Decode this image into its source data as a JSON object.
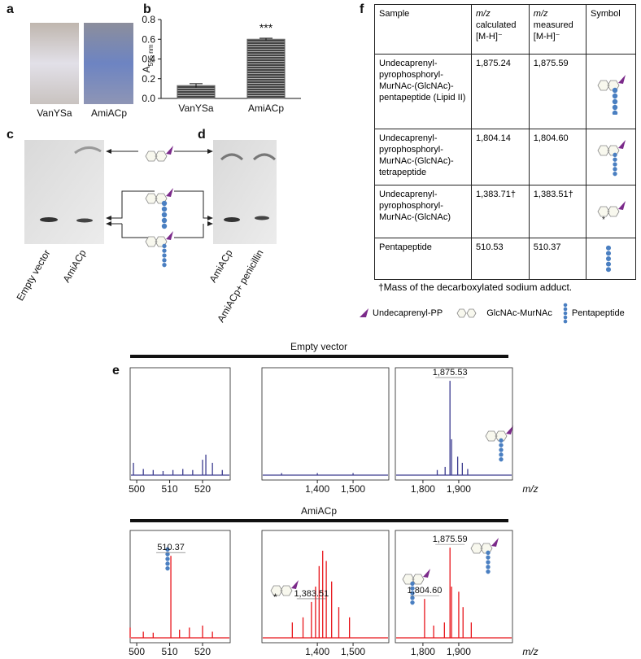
{
  "panel_labels": [
    "a",
    "b",
    "c",
    "d",
    "f",
    "e"
  ],
  "photo_labels": [
    "VanYSa",
    "AmiACp"
  ],
  "gels": {
    "c": {
      "lanes": [
        "Empty vector",
        "AmiACp"
      ]
    },
    "d": {
      "lanes": [
        "AmiACp",
        "AmiACp+ penicillin"
      ]
    }
  },
  "table": {
    "mz_label": "m/z",
    "columns": [
      "Sample",
      "calculated [M-H]⁻",
      "measured [M-H]⁻",
      "Symbol"
    ],
    "rows": [
      [
        "Undecaprenyl-pyrophosphoryl-MurNAc-(GlcNAc)-pentapeptide (Lipid II)",
        "1,875.24",
        "1,875.59"
      ],
      [
        "Undecaprenyl-pyrophosphoryl-MurNAc-(GlcNAc)-tetrapeptide",
        "1,804.14",
        "1,804.60"
      ],
      [
        "Undecaprenyl-pyrophosphoryl-MurNAc-(GlcNAc)",
        "1,383.71†",
        "1,383.51†"
      ],
      [
        "Pentapeptide",
        "510.53",
        "510.37"
      ]
    ],
    "footnote": "†Mass of the decarboxylated sodium adduct."
  },
  "legend": [
    "Undecaprenyl-PP",
    "GlcNAc-MurNAc",
    "Pentapeptide"
  ],
  "spectra_titles": [
    "Empty vector",
    "AmiACp"
  ],
  "chart_data": [
    {
      "type": "bar",
      "categories": [
        "VanYSa",
        "AmiACp"
      ],
      "values": [
        0.13,
        0.6
      ],
      "errors": [
        0.02,
        0.01
      ],
      "color": "#5a5a5a",
      "ylim": [
        0,
        0.8
      ],
      "yticks": [
        {
          "value": 0,
          "label": "0.0"
        },
        {
          "value": 0.2,
          "label": "0.2"
        },
        {
          "value": 0.4,
          "label": "0.4"
        },
        {
          "value": 0.6,
          "label": "0.6"
        },
        {
          "value": 0.8,
          "label": "0.8"
        }
      ],
      "ylabel": "A",
      "ylabel_sub": "595 nm",
      "annotations": [
        {
          "index": 1,
          "label": "***"
        }
      ]
    },
    {
      "type": "spectrum",
      "color": "#3b3b8f",
      "x": [
        499,
        502,
        505,
        508,
        511,
        514,
        517,
        520,
        521,
        523,
        526
      ],
      "values": [
        0.12,
        0.06,
        0.05,
        0.04,
        0.05,
        0.06,
        0.05,
        0.15,
        0.2,
        0.12,
        0.05
      ],
      "xlim": [
        498,
        528.4
      ],
      "xticks": [
        500,
        510,
        520
      ],
      "ylim": [
        0,
        1
      ],
      "annotations": []
    },
    {
      "type": "spectrum",
      "color": "#3b3b8f",
      "x": [
        1300,
        1400,
        1500
      ],
      "values": [
        0.02,
        0.02,
        0.02
      ],
      "xlim": [
        1245,
        1600
      ],
      "xticks": [
        {
          "value": 1400,
          "label": "1,400"
        },
        {
          "value": 1500,
          "label": "1,500"
        }
      ],
      "ylim": [
        0,
        1
      ],
      "annotations": []
    },
    {
      "type": "spectrum",
      "color": "#3b3b8f",
      "x": [
        1840,
        1862,
        1875.53,
        1880,
        1897,
        1910,
        1925
      ],
      "values": [
        0.05,
        0.08,
        0.92,
        0.35,
        0.18,
        0.12,
        0.06
      ],
      "xlim": [
        1723,
        2050
      ],
      "xticks": [
        {
          "value": 1800,
          "label": "1,800"
        },
        {
          "value": 1900,
          "label": "1,900"
        }
      ],
      "ylim": [
        0,
        1
      ],
      "xlabel": "m/z",
      "annotations": [
        {
          "x": 1875.53,
          "label": "1,875.53"
        }
      ]
    },
    {
      "type": "spectrum",
      "color": "#e8141a",
      "x": [
        498,
        502,
        505,
        510.37,
        513,
        516,
        520,
        523
      ],
      "values": [
        0.1,
        0.06,
        0.05,
        0.8,
        0.08,
        0.1,
        0.12,
        0.06
      ],
      "xlim": [
        498,
        528.4
      ],
      "xticks": [
        500,
        510,
        520
      ],
      "ylim": [
        0,
        1
      ],
      "annotations": [
        {
          "x": 510.37,
          "label": "510.37"
        }
      ]
    },
    {
      "type": "spectrum",
      "color": "#e8141a",
      "x": [
        1330,
        1360,
        1383.51,
        1395,
        1405,
        1415,
        1425,
        1440,
        1460,
        1490
      ],
      "values": [
        0.15,
        0.2,
        0.35,
        0.5,
        0.7,
        0.85,
        0.75,
        0.55,
        0.3,
        0.2
      ],
      "xlim": [
        1245,
        1600
      ],
      "xticks": [
        {
          "value": 1400,
          "label": "1,400"
        },
        {
          "value": 1500,
          "label": "1,500"
        }
      ],
      "ylim": [
        0,
        1
      ],
      "annotations": [
        {
          "x": 1383.51,
          "label": "1,383.51"
        }
      ]
    },
    {
      "type": "spectrum",
      "color": "#e8141a",
      "x": [
        1804.6,
        1830,
        1860,
        1875.59,
        1880,
        1900,
        1912,
        1935
      ],
      "values": [
        0.38,
        0.12,
        0.15,
        0.88,
        0.5,
        0.45,
        0.3,
        0.15
      ],
      "xlim": [
        1723,
        2050
      ],
      "xticks": [
        {
          "value": 1800,
          "label": "1,800"
        },
        {
          "value": 1900,
          "label": "1,900"
        }
      ],
      "ylim": [
        0,
        1
      ],
      "xlabel": "m/z",
      "annotations": [
        {
          "x": 1804.6,
          "label": "1,804.60"
        },
        {
          "x": 1875.59,
          "label": "1,875.59"
        }
      ]
    }
  ]
}
